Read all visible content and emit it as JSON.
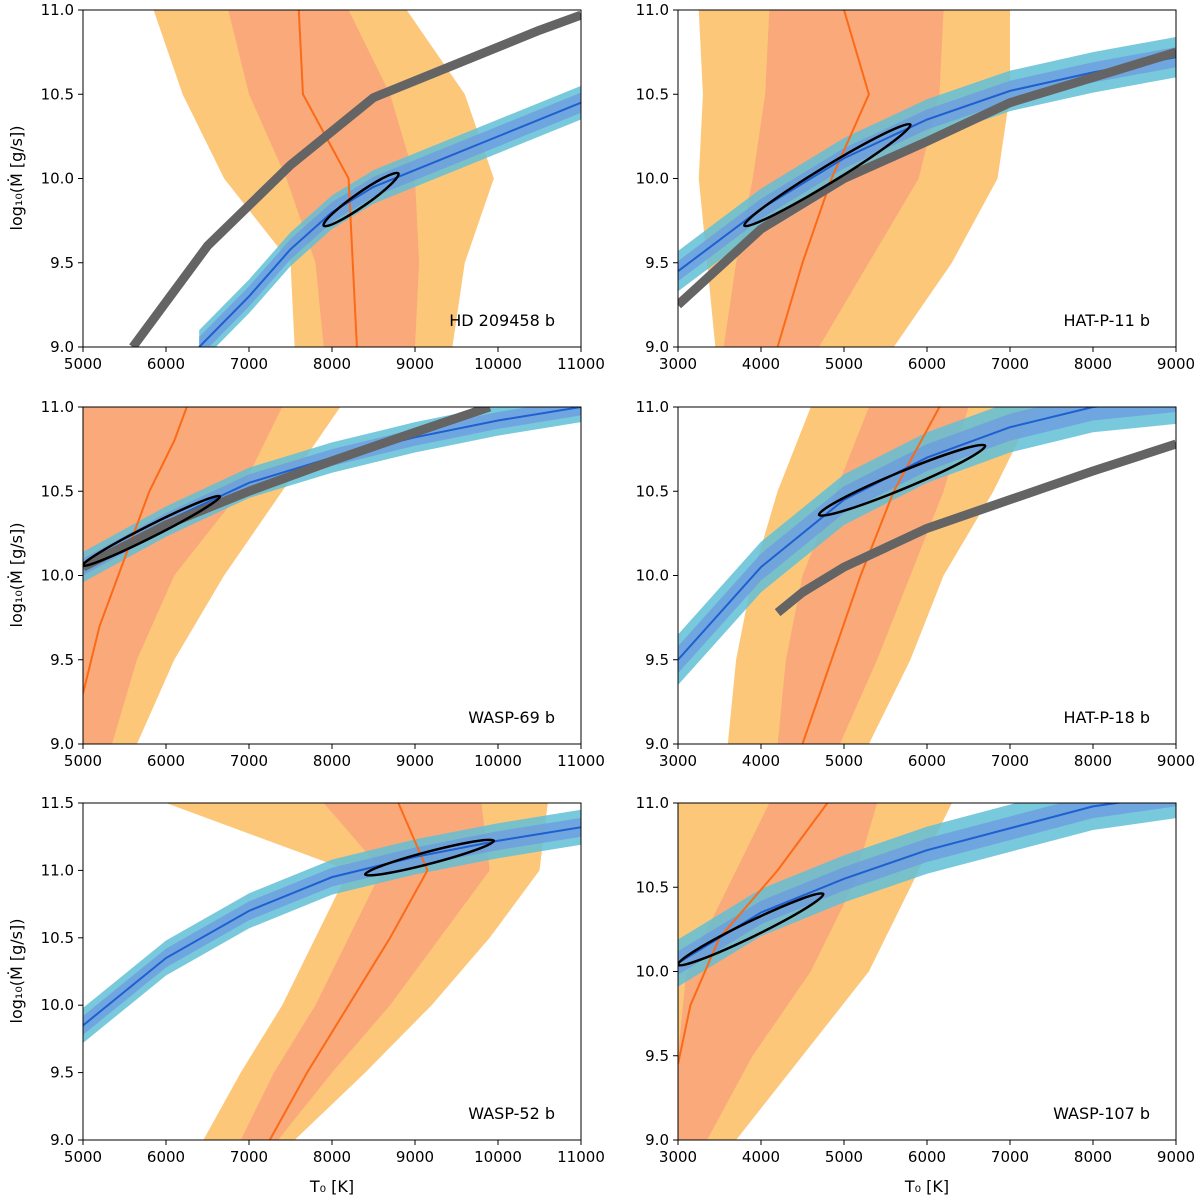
{
  "figure": {
    "xlabel": "T₀ [K]",
    "ylabel": "log₁₀(Ṁ [g/s])"
  },
  "colors": {
    "orange_outer": "#fdc77a",
    "orange_inner": "#f9a67a",
    "orange_line": "#fb6a17",
    "blue_outer": "#62bfd6",
    "blue_inner": "#6d9ae0",
    "blue_line": "#1f5fd0",
    "gray_line": "#646464",
    "contour": "#000000"
  },
  "chart_data": [
    {
      "type": "line",
      "planet": "HD 209458 b",
      "xlim": [
        5000,
        11000
      ],
      "ylim": [
        9.0,
        11.0
      ],
      "xticks": [
        "5000",
        "6000",
        "7000",
        "8000",
        "9000",
        "10000",
        "11000"
      ],
      "yticks": [
        "9.0",
        "9.5",
        "10.0",
        "10.5",
        "11.0"
      ],
      "orange_outer": {
        "y": [
          9.0,
          9.5,
          10.0,
          10.5,
          11.0
        ],
        "lo": [
          7550,
          7500,
          6700,
          6200,
          5850
        ],
        "hi": [
          9450,
          9600,
          9950,
          9600,
          8900
        ]
      },
      "orange_inner": {
        "y": [
          9.0,
          9.5,
          10.0,
          10.5,
          11.0
        ],
        "lo": [
          7900,
          7800,
          7450,
          7000,
          6750
        ],
        "hi": [
          9000,
          9050,
          9000,
          8700,
          8200
        ]
      },
      "orange_median": {
        "y": [
          9.0,
          9.5,
          10.0,
          10.5,
          11.0
        ],
        "x": [
          8300,
          8250,
          8200,
          7650,
          7600
        ]
      },
      "gray": {
        "x": [
          5600,
          6500,
          7500,
          8500,
          9500,
          10500,
          11000
        ],
        "y": [
          9.0,
          9.6,
          10.08,
          10.48,
          10.68,
          10.88,
          10.97
        ]
      },
      "blue": {
        "x": [
          6400,
          7000,
          7500,
          8000,
          8500,
          9000,
          10000,
          11000
        ],
        "y": [
          9.0,
          9.3,
          9.58,
          9.8,
          9.95,
          10.05,
          10.25,
          10.45
        ],
        "w_inner": 0.06,
        "w_outer": 0.1
      },
      "contour": {
        "x": [
          7900,
          8800
        ],
        "y": [
          9.72,
          10.03
        ],
        "half_width": 0.04
      }
    },
    {
      "type": "line",
      "planet": "HAT-P-11 b",
      "xlim": [
        3000,
        9000
      ],
      "ylim": [
        9.0,
        11.0
      ],
      "xticks": [
        "3000",
        "4000",
        "5000",
        "6000",
        "7000",
        "8000",
        "9000"
      ],
      "yticks": [
        "9.0",
        "9.5",
        "10.0",
        "10.5",
        "11.0"
      ],
      "orange_outer": {
        "y": [
          9.0,
          9.5,
          10.0,
          10.5,
          11.0
        ],
        "lo": [
          3450,
          3350,
          3250,
          3300,
          3250
        ],
        "hi": [
          5600,
          6300,
          6850,
          7000,
          7000
        ]
      },
      "orange_inner": {
        "y": [
          9.0,
          9.5,
          10.0,
          10.5,
          11.0
        ],
        "lo": [
          3550,
          3700,
          3900,
          4050,
          4100
        ],
        "hi": [
          4700,
          5300,
          5900,
          6150,
          6200
        ]
      },
      "orange_median": {
        "y": [
          9.0,
          9.5,
          10.0,
          10.5,
          11.0
        ],
        "x": [
          4200,
          4500,
          4850,
          5300,
          5000
        ]
      },
      "gray": {
        "x": [
          3000,
          4000,
          5000,
          6000,
          7000,
          8000,
          9000
        ],
        "y": [
          9.25,
          9.7,
          10.0,
          10.22,
          10.45,
          10.6,
          10.75
        ]
      },
      "blue": {
        "x": [
          3000,
          4000,
          5000,
          6000,
          7000,
          8000,
          9000
        ],
        "y": [
          9.45,
          9.82,
          10.12,
          10.35,
          10.52,
          10.63,
          10.72
        ],
        "w_inner": 0.06,
        "w_outer": 0.12
      },
      "contour": {
        "x": [
          3800,
          5800
        ],
        "y": [
          9.72,
          10.32
        ],
        "half_width": 0.05
      }
    },
    {
      "type": "line",
      "planet": "WASP-69 b",
      "xlim": [
        5000,
        11000
      ],
      "ylim": [
        9.0,
        11.0
      ],
      "xticks": [
        "5000",
        "6000",
        "7000",
        "8000",
        "9000",
        "10000",
        "11000"
      ],
      "yticks": [
        "9.0",
        "9.5",
        "10.0",
        "10.5",
        "11.0"
      ],
      "orange_outer": {
        "y": [
          9.0,
          9.5,
          10.0,
          10.5,
          11.0
        ],
        "lo": [
          5000,
          5000,
          5000,
          5000,
          5000
        ],
        "hi": [
          5650,
          6100,
          6700,
          7400,
          8100
        ]
      },
      "orange_inner": {
        "y": [
          9.0,
          9.5,
          10.0,
          10.5,
          11.0
        ],
        "lo": [
          5000,
          5000,
          5000,
          5000,
          5000
        ],
        "hi": [
          5350,
          5650,
          6100,
          6900,
          7400
        ]
      },
      "orange_median": {
        "y": [
          9.3,
          9.7,
          10.1,
          10.5,
          10.8,
          11.0
        ],
        "x": [
          5000,
          5200,
          5500,
          5800,
          6100,
          6250
        ]
      },
      "gray": {
        "x": [
          5000,
          6000,
          7000,
          8000,
          9000,
          9900
        ],
        "y": [
          10.05,
          10.3,
          10.5,
          10.68,
          10.85,
          11.0
        ]
      },
      "blue": {
        "x": [
          5000,
          6000,
          7000,
          8000,
          9000,
          10000,
          11000
        ],
        "y": [
          10.05,
          10.32,
          10.55,
          10.7,
          10.82,
          10.92,
          11.0
        ],
        "w_inner": 0.05,
        "w_outer": 0.09
      },
      "contour": {
        "x": [
          5000,
          6650
        ],
        "y": [
          10.06,
          10.47
        ],
        "half_width": 0.035
      }
    },
    {
      "type": "line",
      "planet": "HAT-P-18 b",
      "xlim": [
        3000,
        9000
      ],
      "ylim": [
        9.0,
        11.0
      ],
      "xticks": [
        "3000",
        "4000",
        "5000",
        "6000",
        "7000",
        "8000",
        "9000"
      ],
      "yticks": [
        "9.0",
        "9.5",
        "10.0",
        "10.5",
        "11.0"
      ],
      "orange_outer": {
        "y": [
          9.0,
          9.5,
          10.0,
          10.5,
          11.0
        ],
        "lo": [
          3600,
          3700,
          3900,
          4200,
          4600
        ],
        "hi": [
          5300,
          5800,
          6200,
          6800,
          7300
        ]
      },
      "orange_inner": {
        "y": [
          9.0,
          9.5,
          10.0,
          10.5,
          11.0
        ],
        "lo": [
          4200,
          4300,
          4500,
          4900,
          5300
        ],
        "hi": [
          4950,
          5400,
          5800,
          6200,
          6500
        ]
      },
      "orange_median": {
        "y": [
          9.0,
          9.5,
          10.0,
          10.5,
          11.0
        ],
        "x": [
          4500,
          4850,
          5200,
          5600,
          6150
        ]
      },
      "gray": {
        "x": [
          4200,
          4500,
          5000,
          6000,
          7000,
          8000,
          9000
        ],
        "y": [
          9.78,
          9.9,
          10.05,
          10.28,
          10.45,
          10.62,
          10.78
        ]
      },
      "blue": {
        "x": [
          3000,
          4000,
          5000,
          6000,
          7000,
          8000,
          9000
        ],
        "y": [
          9.5,
          10.05,
          10.45,
          10.7,
          10.88,
          11.0,
          11.05
        ],
        "w_inner": 0.08,
        "w_outer": 0.15
      },
      "contour": {
        "x": [
          4700,
          6700
        ],
        "y": [
          10.36,
          10.77
        ],
        "half_width": 0.05
      }
    },
    {
      "type": "line",
      "planet": "WASP-52 b",
      "xlim": [
        5000,
        11000
      ],
      "ylim": [
        9.0,
        11.5
      ],
      "xticks": [
        "5000",
        "6000",
        "7000",
        "8000",
        "9000",
        "10000",
        "11000"
      ],
      "yticks": [
        "9.0",
        "9.5",
        "10.0",
        "10.5",
        "11.0",
        "11.5"
      ],
      "orange_outer": {
        "y": [
          9.0,
          9.5,
          10.0,
          10.5,
          11.0,
          11.5
        ],
        "lo": [
          6450,
          6900,
          7400,
          7800,
          8200,
          6000
        ],
        "hi": [
          7550,
          8400,
          9200,
          9900,
          10500,
          10600
        ]
      },
      "orange_inner": {
        "y": [
          9.0,
          9.5,
          10.0,
          10.5,
          11.0,
          11.5
        ],
        "lo": [
          6900,
          7300,
          7800,
          8200,
          8600,
          7900
        ],
        "hi": [
          7350,
          8000,
          8700,
          9300,
          9900,
          9800
        ]
      },
      "orange_median": {
        "y": [
          9.0,
          9.5,
          10.0,
          10.5,
          11.0,
          11.5
        ],
        "x": [
          7250,
          7700,
          8200,
          8700,
          9150,
          8800
        ]
      },
      "gray": {
        "x": [],
        "y": []
      },
      "blue": {
        "x": [
          5000,
          6000,
          7000,
          8000,
          9000,
          10000,
          11000
        ],
        "y": [
          9.85,
          10.35,
          10.7,
          10.95,
          11.1,
          11.22,
          11.32
        ],
        "w_inner": 0.07,
        "w_outer": 0.13
      },
      "contour": {
        "x": [
          8400,
          9950
        ],
        "y": [
          10.97,
          11.22
        ],
        "half_width": 0.045
      }
    },
    {
      "type": "line",
      "planet": "WASP-107 b",
      "xlim": [
        3000,
        9000
      ],
      "ylim": [
        9.0,
        11.0
      ],
      "xticks": [
        "3000",
        "4000",
        "5000",
        "6000",
        "7000",
        "8000",
        "9000"
      ],
      "yticks": [
        "9.0",
        "9.5",
        "10.0",
        "10.5",
        "11.0"
      ],
      "orange_outer": {
        "y": [
          9.0,
          9.5,
          10.0,
          10.5,
          11.0
        ],
        "lo": [
          3000,
          3000,
          3000,
          3000,
          3000
        ],
        "hi": [
          3700,
          4500,
          5300,
          5800,
          6300
        ]
      },
      "orange_inner": {
        "y": [
          9.0,
          9.5,
          10.0,
          10.5,
          11.0
        ],
        "lo": [
          3000,
          3000,
          3100,
          3600,
          4100
        ],
        "hi": [
          3350,
          3900,
          4600,
          5100,
          5400
        ]
      },
      "orange_median": {
        "y": [
          9.45,
          9.8,
          10.2,
          10.6,
          11.0
        ],
        "x": [
          3000,
          3150,
          3500,
          4200,
          4800
        ]
      },
      "gray": {
        "x": [],
        "y": []
      },
      "blue": {
        "x": [
          3000,
          4000,
          5000,
          6000,
          7000,
          8000,
          9000
        ],
        "y": [
          10.05,
          10.35,
          10.55,
          10.72,
          10.85,
          10.98,
          11.05
        ],
        "w_inner": 0.07,
        "w_outer": 0.14
      },
      "contour": {
        "x": [
          3000,
          4750
        ],
        "y": [
          10.04,
          10.46
        ],
        "half_width": 0.045
      }
    }
  ]
}
